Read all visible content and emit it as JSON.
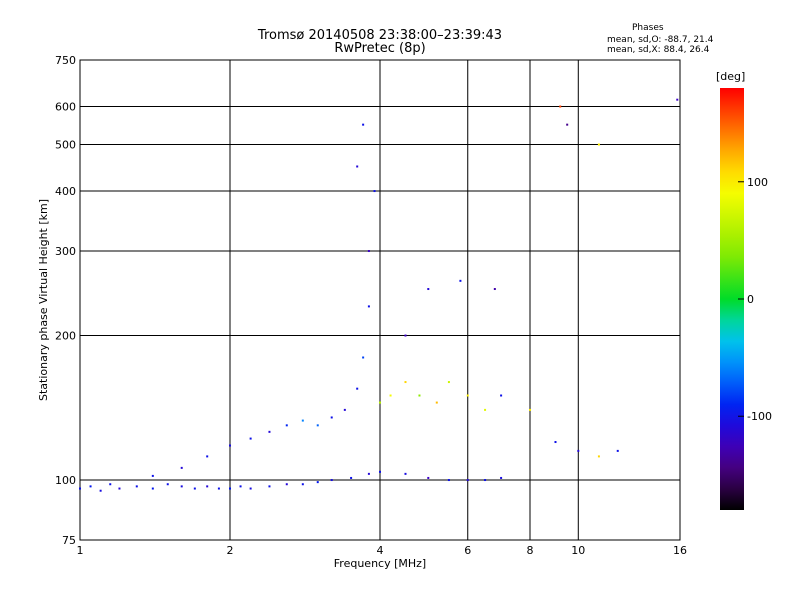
{
  "chart_data": {
    "type": "scatter",
    "title": "Tromsø 20140508 23:38:00–23:39:43",
    "subtitle": "RwPretec (8p)",
    "xlabel": "Frequency [MHz]",
    "ylabel": "Stationary phase Virtual Height [km]",
    "x_scale": "log",
    "y_scale": "log",
    "xlim": [
      1,
      16
    ],
    "ylim": [
      75,
      750
    ],
    "x_ticks": [
      1,
      2,
      4,
      6,
      8,
      10,
      16
    ],
    "y_ticks": [
      75,
      100,
      200,
      300,
      400,
      500,
      600,
      750
    ],
    "grid": true,
    "stats_header": "Phases",
    "stats_lines": [
      "mean, sd,O: -88.7, 21.4",
      "mean, sd,X:  88.4, 26.4"
    ],
    "colorbar": {
      "label": "[deg]",
      "range": [
        -180,
        180
      ],
      "ticks": [
        100,
        0,
        -100
      ]
    },
    "series": [
      {
        "points": [
          [
            1.0,
            96,
            -100
          ],
          [
            1.05,
            97,
            -95
          ],
          [
            1.1,
            95,
            -105
          ],
          [
            1.15,
            98,
            -100
          ],
          [
            1.2,
            96,
            -110
          ],
          [
            1.3,
            97,
            -100
          ],
          [
            1.4,
            96,
            -95
          ],
          [
            1.5,
            98,
            -100
          ],
          [
            1.6,
            97,
            -105
          ],
          [
            1.7,
            96,
            -100
          ],
          [
            1.8,
            97,
            -110
          ],
          [
            1.9,
            96,
            -100
          ],
          [
            2.0,
            96,
            -95
          ],
          [
            2.1,
            97,
            -100
          ],
          [
            2.2,
            96,
            -105
          ],
          [
            2.4,
            97,
            -100
          ],
          [
            2.6,
            98,
            -110
          ],
          [
            2.8,
            98,
            -100
          ],
          [
            3.0,
            99,
            -95
          ],
          [
            3.2,
            100,
            -105
          ],
          [
            3.5,
            101,
            -100
          ],
          [
            3.8,
            103,
            -110
          ],
          [
            4.0,
            104,
            -100
          ],
          [
            4.5,
            103,
            -105
          ],
          [
            5.0,
            101,
            -120
          ],
          [
            5.5,
            100,
            -100
          ],
          [
            6.0,
            100,
            -110
          ],
          [
            6.5,
            100,
            -100
          ],
          [
            7.0,
            101,
            -105
          ],
          [
            1.4,
            102,
            -100
          ],
          [
            1.6,
            106,
            -110
          ],
          [
            1.8,
            112,
            -100
          ],
          [
            2.0,
            118,
            -105
          ],
          [
            2.2,
            122,
            -100
          ],
          [
            2.4,
            126,
            -110
          ],
          [
            2.6,
            130,
            -90
          ],
          [
            2.8,
            133,
            -60
          ],
          [
            3.0,
            130,
            -70
          ],
          [
            3.2,
            135,
            -100
          ],
          [
            3.4,
            140,
            -110
          ],
          [
            3.6,
            155,
            -100
          ],
          [
            3.7,
            180,
            -80
          ],
          [
            3.8,
            230,
            -100
          ],
          [
            3.8,
            300,
            -120
          ],
          [
            3.9,
            400,
            -100
          ],
          [
            3.6,
            450,
            -110
          ],
          [
            3.7,
            550,
            -100
          ],
          [
            4.0,
            145,
            60
          ],
          [
            4.2,
            150,
            90
          ],
          [
            4.5,
            160,
            110
          ],
          [
            4.8,
            150,
            40
          ],
          [
            5.2,
            145,
            120
          ],
          [
            5.5,
            160,
            70
          ],
          [
            6.0,
            150,
            100
          ],
          [
            6.5,
            140,
            80
          ],
          [
            7.0,
            150,
            -100
          ],
          [
            8.0,
            140,
            100
          ],
          [
            9.0,
            120,
            -100
          ],
          [
            10.0,
            115,
            -110
          ],
          [
            11.0,
            112,
            110
          ],
          [
            12.0,
            115,
            -100
          ],
          [
            4.5,
            200,
            -120
          ],
          [
            5.0,
            250,
            -110
          ],
          [
            5.8,
            260,
            -100
          ],
          [
            6.8,
            250,
            -130
          ],
          [
            9.2,
            600,
            160
          ],
          [
            9.5,
            550,
            -140
          ],
          [
            11.0,
            500,
            100
          ],
          [
            15.8,
            620,
            -120
          ]
        ]
      }
    ]
  }
}
